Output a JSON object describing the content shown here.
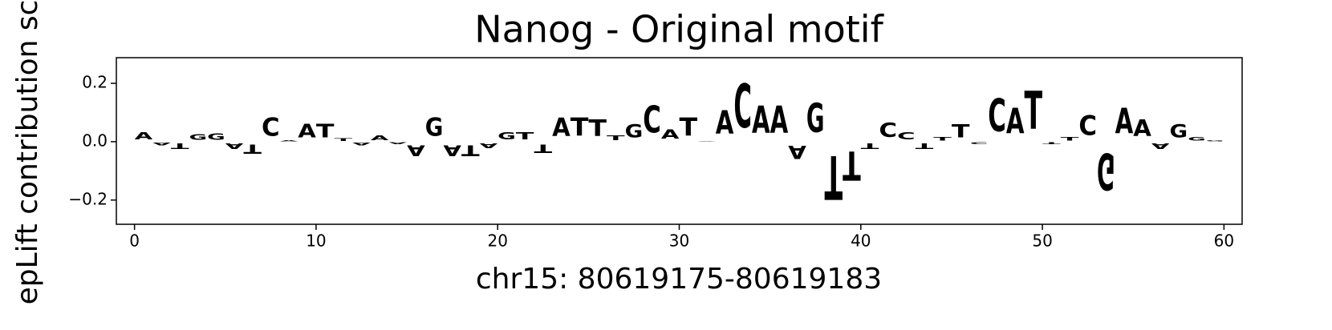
{
  "chart_data": {
    "type": "logo",
    "title": "Nanog - Original motif",
    "xlabel": "chr15: 80619175-80619183",
    "ylabel": "epLift contribution sc",
    "categories": [
      "A",
      "A",
      "T",
      "G",
      "G",
      "A",
      "T",
      "C",
      "A",
      "A",
      "T",
      "T",
      "A",
      "A",
      "A",
      "A",
      "G",
      "A",
      "T",
      "A",
      "G",
      "T",
      "T",
      "A",
      "T",
      "T",
      "T",
      "G",
      "C",
      "A",
      "T",
      "A",
      "A",
      "C",
      "A",
      "A",
      "A",
      "G",
      "T",
      "T",
      "T",
      "C",
      "C",
      "T",
      "T",
      "T",
      "C",
      "C",
      "A",
      "T",
      "T",
      "T",
      "C",
      "G",
      "A",
      "A",
      "A",
      "G",
      "G",
      "G"
    ],
    "values": [
      0.04,
      -0.015,
      -0.03,
      0.03,
      0.035,
      -0.03,
      -0.05,
      0.1,
      0.005,
      0.075,
      0.075,
      0.015,
      -0.015,
      0.025,
      -0.01,
      -0.06,
      0.1,
      -0.06,
      -0.06,
      -0.025,
      0.04,
      0.04,
      -0.045,
      0.1,
      0.1,
      0.09,
      0.025,
      0.07,
      0.15,
      0.05,
      0.1,
      0.002,
      0.13,
      0.24,
      0.15,
      0.15,
      -0.07,
      0.16,
      -0.24,
      -0.16,
      -0.03,
      0.08,
      0.04,
      -0.03,
      0.02,
      0.07,
      -0.01,
      0.18,
      0.14,
      0.21,
      -0.01,
      0.02,
      0.11,
      -0.2,
      0.14,
      0.09,
      -0.03,
      0.07,
      0.02,
      0.005
    ],
    "colors": {
      "A": "#008000",
      "C": "#0000ff",
      "G": "#ffa500",
      "T": "#ff0000"
    },
    "xlim": [
      -1,
      61
    ],
    "xticks": [
      0,
      10,
      20,
      30,
      40,
      50,
      60
    ],
    "ylim": [
      -0.283,
      0.288
    ],
    "yticks": [
      {
        "value": -0.2,
        "label": "−0.2"
      },
      {
        "value": 0,
        "label": "0.0"
      },
      {
        "value": 0.2,
        "label": "0.2"
      }
    ]
  }
}
